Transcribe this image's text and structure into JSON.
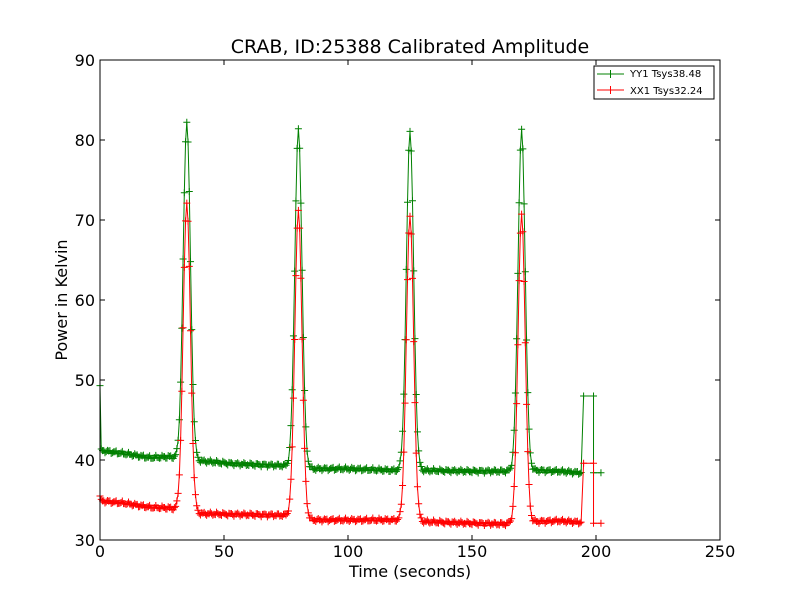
{
  "chart_data": {
    "type": "line",
    "title": "CRAB, ID:25388 Calibrated Amplitude",
    "xlabel": "Time (seconds)",
    "ylabel": "Power in Kelvin",
    "xlim": [
      0,
      250
    ],
    "ylim": [
      30,
      90
    ],
    "xticks": [
      "0",
      "50",
      "100",
      "150",
      "200",
      "250"
    ],
    "yticks": [
      "30",
      "40",
      "50",
      "60",
      "70",
      "80",
      "90"
    ],
    "grid": false,
    "legend_position": "top-right",
    "series": [
      {
        "name": "YY1 Tsys38.48",
        "color": "#008000",
        "marker": "+",
        "peaks": [
          35,
          80,
          125,
          170
        ],
        "peak_heights": [
          82.3,
          81.3,
          81.2,
          81.2
        ],
        "baseline_segments": [
          [
            0,
            41.2
          ],
          [
            10,
            40.8
          ],
          [
            20,
            40.3
          ],
          [
            28,
            40.4
          ],
          [
            40,
            39.9
          ],
          [
            55,
            39.5
          ],
          [
            74,
            39.3
          ],
          [
            86,
            38.9
          ],
          [
            100,
            38.9
          ],
          [
            118,
            38.7
          ],
          [
            130,
            38.7
          ],
          [
            150,
            38.6
          ],
          [
            163,
            38.6
          ],
          [
            176,
            38.7
          ],
          [
            185,
            38.6
          ],
          [
            194,
            38.4
          ]
        ],
        "initial_spike": 49.3,
        "tail": [
          [
            195,
            48.0
          ],
          [
            199,
            48.0
          ],
          [
            199,
            38.4
          ],
          [
            202,
            38.4
          ]
        ]
      },
      {
        "name": "XX1 Tsys32.24",
        "color": "#ff0000",
        "marker": "+",
        "peaks": [
          35,
          80,
          125,
          170
        ],
        "peak_heights": [
          72.2,
          71.1,
          70.6,
          70.6
        ],
        "baseline_segments": [
          [
            0,
            34.9
          ],
          [
            10,
            34.6
          ],
          [
            20,
            34.1
          ],
          [
            28,
            34.0
          ],
          [
            40,
            33.3
          ],
          [
            55,
            33.2
          ],
          [
            74,
            33.1
          ],
          [
            86,
            32.5
          ],
          [
            100,
            32.5
          ],
          [
            118,
            32.5
          ],
          [
            130,
            32.3
          ],
          [
            150,
            32.1
          ],
          [
            163,
            32.0
          ],
          [
            176,
            32.3
          ],
          [
            185,
            32.4
          ],
          [
            194,
            32.2
          ]
        ],
        "initial_spike": 35.5,
        "tail": [
          [
            195,
            39.6
          ],
          [
            199,
            39.6
          ],
          [
            199,
            32.1
          ],
          [
            202,
            32.1
          ]
        ]
      }
    ]
  }
}
